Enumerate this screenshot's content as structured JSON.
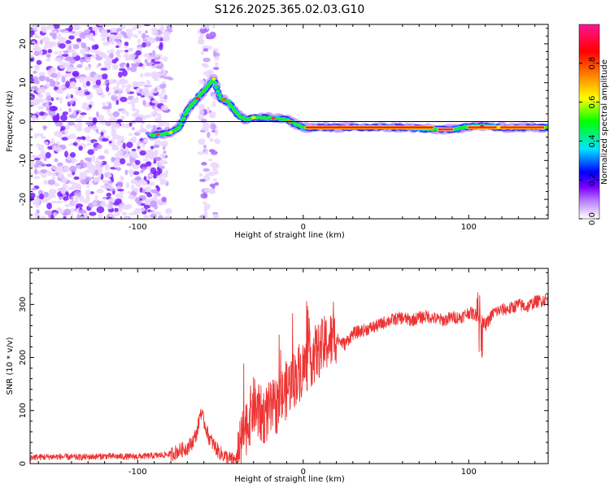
{
  "title": "S126.2025.365.02.03.G10",
  "chart_data": [
    {
      "type": "heatmap",
      "name": "spectrogram",
      "xlabel": "Height of straight line (km)",
      "ylabel": "Frequency (Hz)",
      "xlim": [
        -165,
        148
      ],
      "ylim": [
        -25,
        25
      ],
      "xticks": [
        -100,
        0,
        100
      ],
      "xtick_labels": [
        "-100",
        "0",
        "100"
      ],
      "yticks": [
        20,
        10,
        0,
        -10,
        -20
      ],
      "ytick_labels": [
        "20",
        "10",
        "0",
        "-10",
        "-20"
      ],
      "ridge": [
        [
          -92,
          -3.5
        ],
        [
          -85,
          -3.2
        ],
        [
          -80,
          -2.8
        ],
        [
          -75,
          -1.5
        ],
        [
          -70,
          3
        ],
        [
          -64,
          6
        ],
        [
          -58,
          9
        ],
        [
          -54,
          11
        ],
        [
          -50,
          6
        ],
        [
          -45,
          5
        ],
        [
          -40,
          2
        ],
        [
          -35,
          0.5
        ],
        [
          -30,
          1
        ],
        [
          -20,
          1
        ],
        [
          -10,
          0.5
        ],
        [
          0,
          -1.5
        ],
        [
          20,
          -1.5
        ],
        [
          40,
          -1.5
        ],
        [
          60,
          -1.5
        ],
        [
          80,
          -2
        ],
        [
          90,
          -2
        ],
        [
          100,
          -1.2
        ],
        [
          110,
          -1.2
        ],
        [
          120,
          -1.5
        ],
        [
          148,
          -1.5
        ]
      ],
      "colorbar": {
        "label": "Normalized spectral amplitude",
        "ticks": [
          0.0,
          0.2,
          0.4,
          0.6,
          0.8
        ],
        "tick_labels": [
          "0.0",
          "0.2",
          "0.4",
          "0.6",
          "0.8"
        ],
        "range": [
          0,
          1
        ]
      },
      "colormap": [
        "#ffffff",
        "#d9b3ff",
        "#8000ff",
        "#0000ff",
        "#00e5ff",
        "#00ff00",
        "#ffff00",
        "#ff8000",
        "#ff0000",
        "#ff1493"
      ]
    },
    {
      "type": "line",
      "name": "snr",
      "xlabel": "Height of straight line (km)",
      "ylabel": "SNR (10 * v/v)",
      "xlim": [
        -165,
        148
      ],
      "ylim": [
        0,
        368
      ],
      "xticks": [
        -100,
        0,
        100
      ],
      "xtick_labels": [
        "-100",
        "0",
        "100"
      ],
      "yticks": [
        0,
        100,
        200,
        300
      ],
      "ytick_labels": [
        "0",
        "100",
        "200",
        "300"
      ],
      "color": "#ee3333",
      "series": [
        {
          "name": "SNR",
          "x": [
            -165,
            -150,
            -135,
            -120,
            -105,
            -95,
            -85,
            -80,
            -75,
            -70,
            -67,
            -64,
            -62,
            -60,
            -57,
            -54,
            -51,
            -48,
            -45,
            -42,
            -40,
            -38,
            -36,
            -33,
            -30,
            -27,
            -24,
            -20,
            -16,
            -12,
            -8,
            -4,
            0,
            5,
            10,
            15,
            20,
            25,
            30,
            35,
            40,
            45,
            50,
            55,
            60,
            65,
            70,
            75,
            80,
            85,
            90,
            95,
            100,
            105,
            110,
            115,
            120,
            125,
            130,
            135,
            140,
            148
          ],
          "y": [
            12,
            13,
            12,
            14,
            13,
            14,
            16,
            18,
            24,
            30,
            40,
            60,
            100,
            80,
            50,
            35,
            22,
            15,
            10,
            6,
            10,
            30,
            60,
            80,
            110,
            95,
            90,
            100,
            110,
            130,
            150,
            165,
            180,
            200,
            215,
            230,
            235,
            225,
            245,
            250,
            255,
            260,
            268,
            272,
            275,
            270,
            275,
            278,
            273,
            270,
            276,
            275,
            285,
            280,
            260,
            285,
            290,
            292,
            300,
            295,
            305,
            310
          ]
        }
      ]
    }
  ]
}
